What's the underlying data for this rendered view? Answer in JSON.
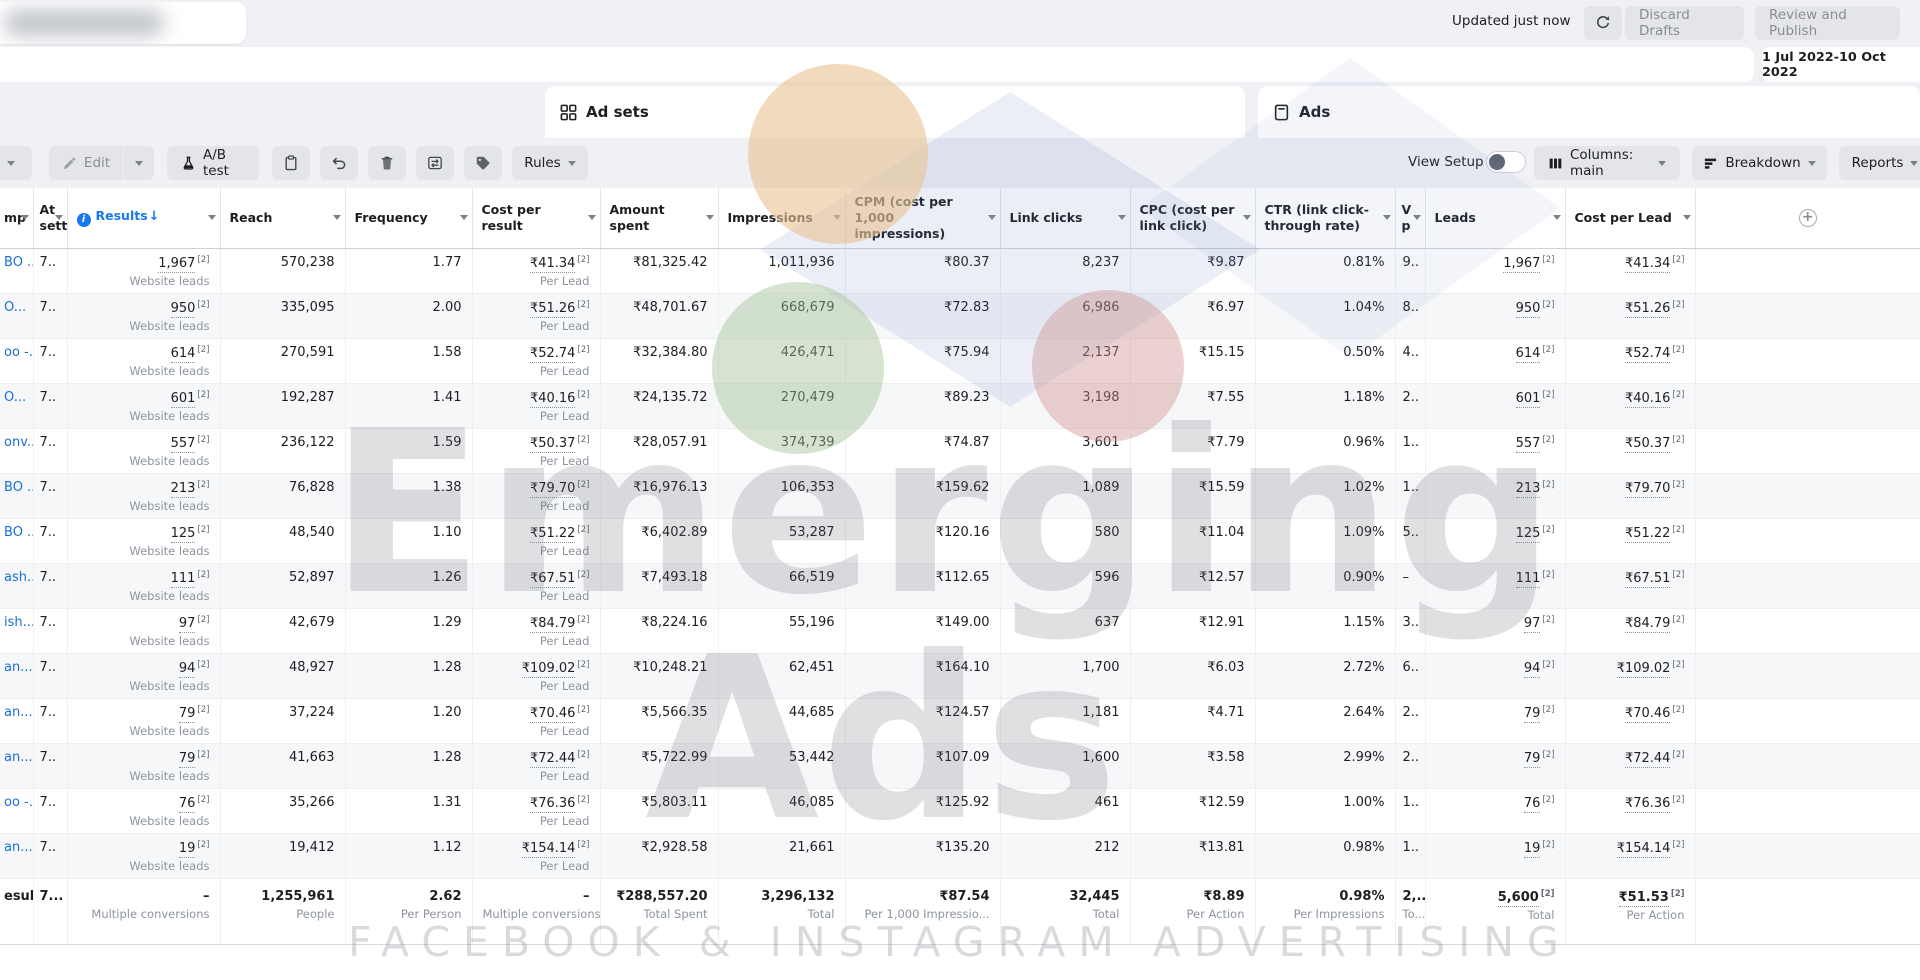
{
  "topbar": {
    "updated": "Updated just now",
    "discard_label": "Discard Drafts",
    "review_label": "Review and Publish",
    "date_range": "1 Jul 2022-10 Oct 2022"
  },
  "tabs": {
    "adsets_label": "Ad sets",
    "ads_label": "Ads"
  },
  "toolbar": {
    "edit_label": "Edit",
    "ab_test_label": "A/B test",
    "rules_label": "Rules",
    "view_setup_label": "View Setup",
    "columns_label": "Columns: main",
    "breakdown_label": "Breakdown",
    "reports_label": "Reports"
  },
  "colors": {
    "accent_blue": "#1877f2",
    "link_blue": "#1a6fd4",
    "disabled_text": "#8a8d91"
  },
  "table": {
    "columns": [
      {
        "key": "name",
        "label": "mp"
      },
      {
        "key": "att",
        "label": "At sett"
      },
      {
        "key": "results",
        "label": "Results"
      },
      {
        "key": "reach",
        "label": "Reach"
      },
      {
        "key": "frequency",
        "label": "Frequency"
      },
      {
        "key": "cpr",
        "label": "Cost per result"
      },
      {
        "key": "spent",
        "label": "Amount spent"
      },
      {
        "key": "impressions",
        "label": "Impressions"
      },
      {
        "key": "cpm",
        "label": "CPM (cost per 1,000 impressions)"
      },
      {
        "key": "clicks",
        "label": "Link clicks"
      },
      {
        "key": "cpc",
        "label": "CPC (cost per link click)"
      },
      {
        "key": "ctr",
        "label": "CTR (link click-through rate)"
      },
      {
        "key": "vp",
        "label": "V p"
      },
      {
        "key": "leads",
        "label": "Leads"
      },
      {
        "key": "cpl",
        "label": "Cost per Lead"
      },
      {
        "key": "add",
        "label": ""
      }
    ],
    "rows": [
      {
        "name": "BO ...",
        "att": "7..",
        "results": {
          "v": "1,967",
          "sup": "2",
          "u": true,
          "sub": "Website leads"
        },
        "reach": "570,238",
        "frequency": "1.77",
        "cpr": {
          "v": "₹41.34",
          "sup": "2",
          "u": true,
          "sub": "Per Lead"
        },
        "spent": "₹81,325.42",
        "impressions": "1,011,936",
        "cpm": "₹80.37",
        "clicks": "8,237",
        "cpc": "₹9.87",
        "ctr": "0.81%",
        "vp": "9..",
        "leads": {
          "v": "1,967",
          "sup": "2",
          "u": true
        },
        "cpl": {
          "v": "₹41.34",
          "sup": "2",
          "u": true
        }
      },
      {
        "name": "O...",
        "att": "7..",
        "results": {
          "v": "950",
          "sup": "2",
          "u": true,
          "sub": "Website leads"
        },
        "reach": "335,095",
        "frequency": "2.00",
        "cpr": {
          "v": "₹51.26",
          "sup": "2",
          "u": true,
          "sub": "Per Lead"
        },
        "spent": "₹48,701.67",
        "impressions": "668,679",
        "cpm": "₹72.83",
        "clicks": "6,986",
        "cpc": "₹6.97",
        "ctr": "1.04%",
        "vp": "8..",
        "leads": {
          "v": "950",
          "sup": "2",
          "u": true
        },
        "cpl": {
          "v": "₹51.26",
          "sup": "2",
          "u": true
        }
      },
      {
        "name": "oo -...",
        "att": "7..",
        "results": {
          "v": "614",
          "sup": "2",
          "u": true,
          "sub": "Website leads"
        },
        "reach": "270,591",
        "frequency": "1.58",
        "cpr": {
          "v": "₹52.74",
          "sup": "2",
          "u": true,
          "sub": "Per Lead"
        },
        "spent": "₹32,384.80",
        "impressions": "426,471",
        "cpm": "₹75.94",
        "clicks": "2,137",
        "cpc": "₹15.15",
        "ctr": "0.50%",
        "vp": "4..",
        "leads": {
          "v": "614",
          "sup": "2",
          "u": true
        },
        "cpl": {
          "v": "₹52.74",
          "sup": "2",
          "u": true
        }
      },
      {
        "name": "O...",
        "att": "7..",
        "results": {
          "v": "601",
          "sup": "2",
          "u": true,
          "sub": "Website leads"
        },
        "reach": "192,287",
        "frequency": "1.41",
        "cpr": {
          "v": "₹40.16",
          "sup": "2",
          "u": true,
          "sub": "Per Lead"
        },
        "spent": "₹24,135.72",
        "impressions": "270,479",
        "cpm": "₹89.23",
        "clicks": "3,198",
        "cpc": "₹7.55",
        "ctr": "1.18%",
        "vp": "2..",
        "leads": {
          "v": "601",
          "sup": "2",
          "u": true
        },
        "cpl": {
          "v": "₹40.16",
          "sup": "2",
          "u": true
        }
      },
      {
        "name": "onv...",
        "att": "7..",
        "results": {
          "v": "557",
          "sup": "2",
          "u": true,
          "sub": "Website leads"
        },
        "reach": "236,122",
        "frequency": "1.59",
        "cpr": {
          "v": "₹50.37",
          "sup": "2",
          "u": true,
          "sub": "Per Lead"
        },
        "spent": "₹28,057.91",
        "impressions": "374,739",
        "cpm": "₹74.87",
        "clicks": "3,601",
        "cpc": "₹7.79",
        "ctr": "0.96%",
        "vp": "1..",
        "leads": {
          "v": "557",
          "sup": "2",
          "u": true
        },
        "cpl": {
          "v": "₹50.37",
          "sup": "2",
          "u": true
        }
      },
      {
        "name": "BO ...",
        "att": "7..",
        "results": {
          "v": "213",
          "sup": "2",
          "u": true,
          "sub": "Website leads"
        },
        "reach": "76,828",
        "frequency": "1.38",
        "cpr": {
          "v": "₹79.70",
          "sup": "2",
          "u": true,
          "sub": "Per Lead"
        },
        "spent": "₹16,976.13",
        "impressions": "106,353",
        "cpm": "₹159.62",
        "clicks": "1,089",
        "cpc": "₹15.59",
        "ctr": "1.02%",
        "vp": "1..",
        "leads": {
          "v": "213",
          "sup": "2",
          "u": true
        },
        "cpl": {
          "v": "₹79.70",
          "sup": "2",
          "u": true
        }
      },
      {
        "name": "BO ...",
        "att": "7..",
        "results": {
          "v": "125",
          "sup": "2",
          "u": true,
          "sub": "Website leads"
        },
        "reach": "48,540",
        "frequency": "1.10",
        "cpr": {
          "v": "₹51.22",
          "sup": "2",
          "u": true,
          "sub": "Per Lead"
        },
        "spent": "₹6,402.89",
        "impressions": "53,287",
        "cpm": "₹120.16",
        "clicks": "580",
        "cpc": "₹11.04",
        "ctr": "1.09%",
        "vp": "5..",
        "leads": {
          "v": "125",
          "sup": "2",
          "u": true
        },
        "cpl": {
          "v": "₹51.22",
          "sup": "2",
          "u": true
        }
      },
      {
        "name": "ash...",
        "att": "7..",
        "results": {
          "v": "111",
          "sup": "2",
          "u": true,
          "sub": "Website leads"
        },
        "reach": "52,897",
        "frequency": "1.26",
        "cpr": {
          "v": "₹67.51",
          "sup": "2",
          "u": true,
          "sub": "Per Lead"
        },
        "spent": "₹7,493.18",
        "impressions": "66,519",
        "cpm": "₹112.65",
        "clicks": "596",
        "cpc": "₹12.57",
        "ctr": "0.90%",
        "vp": "–",
        "leads": {
          "v": "111",
          "sup": "2",
          "u": true
        },
        "cpl": {
          "v": "₹67.51",
          "sup": "2",
          "u": true
        }
      },
      {
        "name": "ish...",
        "att": "7..",
        "results": {
          "v": "97",
          "sup": "2",
          "u": true,
          "sub": "Website leads"
        },
        "reach": "42,679",
        "frequency": "1.29",
        "cpr": {
          "v": "₹84.79",
          "sup": "2",
          "u": true,
          "sub": "Per Lead"
        },
        "spent": "₹8,224.16",
        "impressions": "55,196",
        "cpm": "₹149.00",
        "clicks": "637",
        "cpc": "₹12.91",
        "ctr": "1.15%",
        "vp": "3..",
        "leads": {
          "v": "97",
          "sup": "2",
          "u": true
        },
        "cpl": {
          "v": "₹84.79",
          "sup": "2",
          "u": true
        }
      },
      {
        "name": "an...",
        "att": "7..",
        "results": {
          "v": "94",
          "sup": "2",
          "u": true,
          "sub": "Website leads"
        },
        "reach": "48,927",
        "frequency": "1.28",
        "cpr": {
          "v": "₹109.02",
          "sup": "2",
          "u": true,
          "sub": "Per Lead"
        },
        "spent": "₹10,248.21",
        "impressions": "62,451",
        "cpm": "₹164.10",
        "clicks": "1,700",
        "cpc": "₹6.03",
        "ctr": "2.72%",
        "vp": "6..",
        "leads": {
          "v": "94",
          "sup": "2",
          "u": true
        },
        "cpl": {
          "v": "₹109.02",
          "sup": "2",
          "u": true
        }
      },
      {
        "name": "an...",
        "att": "7..",
        "results": {
          "v": "79",
          "sup": "2",
          "u": true,
          "sub": "Website leads"
        },
        "reach": "37,224",
        "frequency": "1.20",
        "cpr": {
          "v": "₹70.46",
          "sup": "2",
          "u": true,
          "sub": "Per Lead"
        },
        "spent": "₹5,566.35",
        "impressions": "44,685",
        "cpm": "₹124.57",
        "clicks": "1,181",
        "cpc": "₹4.71",
        "ctr": "2.64%",
        "vp": "2..",
        "leads": {
          "v": "79",
          "sup": "2",
          "u": true
        },
        "cpl": {
          "v": "₹70.46",
          "sup": "2",
          "u": true
        }
      },
      {
        "name": "an...",
        "att": "7..",
        "results": {
          "v": "79",
          "sup": "2",
          "u": true,
          "sub": "Website leads"
        },
        "reach": "41,663",
        "frequency": "1.28",
        "cpr": {
          "v": "₹72.44",
          "sup": "2",
          "u": true,
          "sub": "Per Lead"
        },
        "spent": "₹5,722.99",
        "impressions": "53,442",
        "cpm": "₹107.09",
        "clicks": "1,600",
        "cpc": "₹3.58",
        "ctr": "2.99%",
        "vp": "2..",
        "leads": {
          "v": "79",
          "sup": "2",
          "u": true
        },
        "cpl": {
          "v": "₹72.44",
          "sup": "2",
          "u": true
        }
      },
      {
        "name": "oo -...",
        "att": "7..",
        "results": {
          "v": "76",
          "sup": "2",
          "u": true,
          "sub": "Website leads"
        },
        "reach": "35,266",
        "frequency": "1.31",
        "cpr": {
          "v": "₹76.36",
          "sup": "2",
          "u": true,
          "sub": "Per Lead"
        },
        "spent": "₹5,803.11",
        "impressions": "46,085",
        "cpm": "₹125.92",
        "clicks": "461",
        "cpc": "₹12.59",
        "ctr": "1.00%",
        "vp": "1..",
        "leads": {
          "v": "76",
          "sup": "2",
          "u": true
        },
        "cpl": {
          "v": "₹76.36",
          "sup": "2",
          "u": true
        }
      },
      {
        "name": "an...",
        "att": "7..",
        "results": {
          "v": "19",
          "sup": "2",
          "u": true,
          "sub": "Website leads"
        },
        "reach": "19,412",
        "frequency": "1.12",
        "cpr": {
          "v": "₹154.14",
          "sup": "2",
          "u": true,
          "sub": "Per Lead"
        },
        "spent": "₹2,928.58",
        "impressions": "21,661",
        "cpm": "₹135.20",
        "clicks": "212",
        "cpc": "₹13.81",
        "ctr": "0.98%",
        "vp": "1..",
        "leads": {
          "v": "19",
          "sup": "2",
          "u": true
        },
        "cpl": {
          "v": "₹154.14",
          "sup": "2",
          "u": true
        }
      }
    ],
    "totals": {
      "name": "esult...",
      "att": "7...",
      "results": {
        "v": "–",
        "sub": "Multiple conversions"
      },
      "reach": {
        "v": "1,255,961",
        "sub": "People"
      },
      "frequency": {
        "v": "2.62",
        "sub": "Per Person"
      },
      "cpr": {
        "v": "–",
        "sub": "Multiple conversions"
      },
      "spent": {
        "v": "₹288,557.20",
        "sub": "Total Spent"
      },
      "impressions": {
        "v": "3,296,132",
        "sub": "Total"
      },
      "cpm": {
        "v": "₹87.54",
        "sub": "Per 1,000 Impressio..."
      },
      "clicks": {
        "v": "32,445",
        "sub": "Total"
      },
      "cpc": {
        "v": "₹8.89",
        "sub": "Per Action"
      },
      "ctr": {
        "v": "0.98%",
        "sub": "Per Impressions"
      },
      "vp": {
        "v": "2,...",
        "sub": "To..."
      },
      "leads": {
        "v": "5,600",
        "sup": "2",
        "u": true,
        "sub": "Total"
      },
      "cpl": {
        "v": "₹51.53",
        "sup": "2",
        "u": true,
        "sub": "Per Action"
      }
    }
  },
  "watermark": {
    "line1": "Emerging",
    "line2": "Ads",
    "bottom": "FACEBOOK & INSTAGRAM ADVERTISING"
  }
}
